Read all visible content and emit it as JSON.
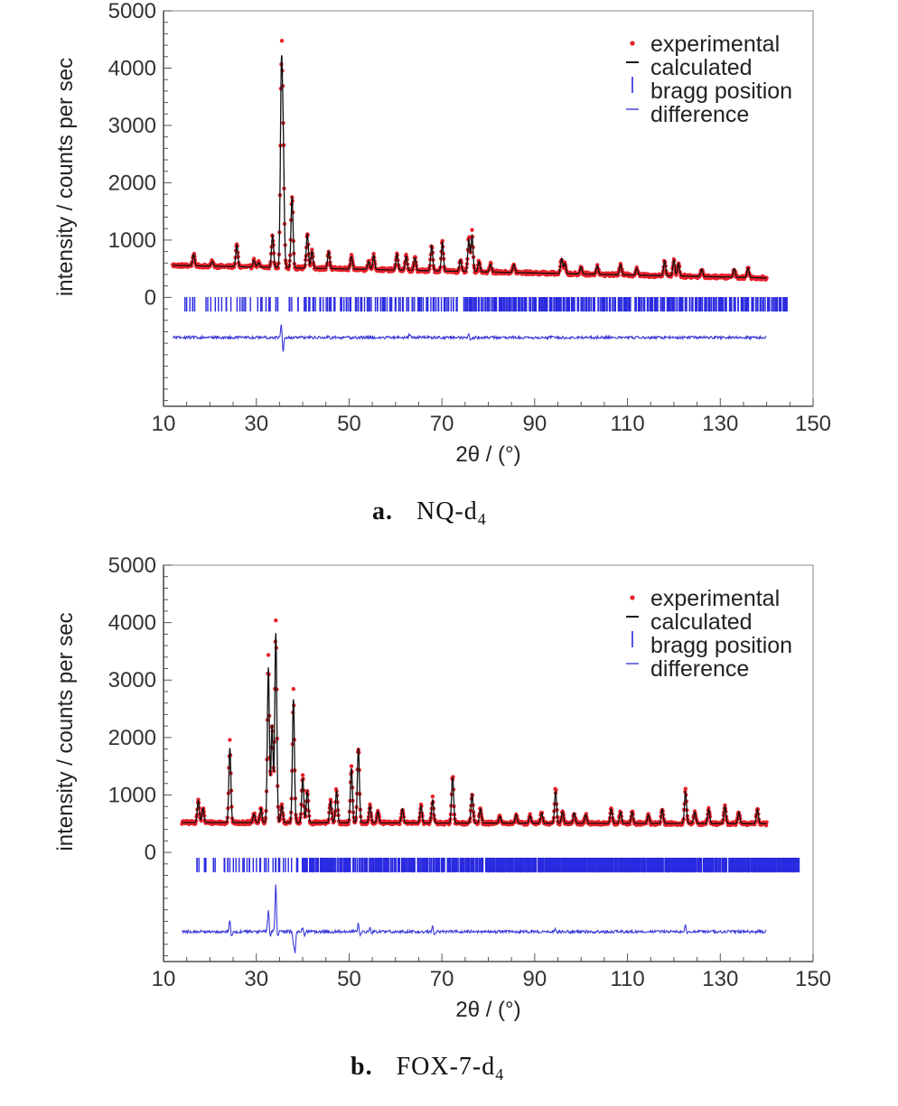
{
  "chart_data": [
    {
      "id": "a",
      "type": "line",
      "caption_letter": "a.",
      "caption_name": "NQ-d",
      "caption_sub": "4",
      "xlabel": "2θ / (°)",
      "ylabel": "intensity / counts per sec",
      "xlim": [
        10,
        150
      ],
      "ylim": [
        -1900,
        5000
      ],
      "x_ticks": [
        10,
        30,
        50,
        70,
        90,
        110,
        130,
        150
      ],
      "y_ticks": [
        0,
        1000,
        2000,
        3000,
        4000,
        5000
      ],
      "grid": false,
      "legend_position": "top-right",
      "legend": [
        "experimental",
        "calculated",
        "bragg position",
        "difference"
      ],
      "colors": {
        "experimental": "#e8202a",
        "calculated": "#111111",
        "bragg": "#2a2ae0",
        "difference": "#3a3ad8"
      },
      "x_range": [
        12,
        140
      ],
      "background": {
        "start": 560,
        "end": 340
      },
      "peaks": [
        [
          16.5,
          200
        ],
        [
          20.5,
          80
        ],
        [
          25.8,
          380
        ],
        [
          29.5,
          120
        ],
        [
          30.5,
          80
        ],
        [
          33.5,
          560
        ],
        [
          35.4,
          3250
        ],
        [
          35.8,
          1900
        ],
        [
          37.7,
          1250
        ],
        [
          41.0,
          600
        ],
        [
          42.0,
          300
        ],
        [
          45.6,
          300
        ],
        [
          50.5,
          220
        ],
        [
          54.2,
          140
        ],
        [
          55.3,
          250
        ],
        [
          60.3,
          280
        ],
        [
          62.3,
          250
        ],
        [
          64.2,
          220
        ],
        [
          67.8,
          440
        ],
        [
          70.1,
          500
        ],
        [
          74.0,
          200
        ],
        [
          75.8,
          560
        ],
        [
          76.5,
          620
        ],
        [
          78.0,
          180
        ],
        [
          80.5,
          140
        ],
        [
          85.5,
          140
        ],
        [
          95.8,
          260
        ],
        [
          96.5,
          180
        ],
        [
          100.0,
          120
        ],
        [
          103.5,
          150
        ],
        [
          108.5,
          180
        ],
        [
          112.0,
          120
        ],
        [
          118.0,
          260
        ],
        [
          120.0,
          280
        ],
        [
          121.0,
          220
        ],
        [
          126.0,
          130
        ],
        [
          133.0,
          150
        ],
        [
          136.0,
          170
        ]
      ],
      "bragg_y": -120,
      "bragg_sets": [
        [
          14,
          40,
          2.2,
          3
        ],
        [
          40,
          75,
          1.1,
          3
        ],
        [
          75,
          100,
          0.6,
          3
        ],
        [
          100,
          145,
          0.7,
          3
        ]
      ],
      "difference_offset": -700,
      "difference_features": [
        [
          35.4,
          260,
          -280
        ],
        [
          45.6,
          40,
          -30
        ],
        [
          63.0,
          60,
          0
        ],
        [
          75.8,
          60,
          -40
        ]
      ]
    },
    {
      "id": "b",
      "type": "line",
      "caption_letter": "b.",
      "caption_name": "FOX-7-d",
      "caption_sub": "4",
      "xlabel": "2θ / (°)",
      "ylabel": "intensity / counts per sec",
      "xlim": [
        10,
        150
      ],
      "ylim": [
        -1900,
        5000
      ],
      "x_ticks": [
        10,
        30,
        50,
        70,
        90,
        110,
        130,
        150
      ],
      "y_ticks": [
        0,
        1000,
        2000,
        3000,
        4000,
        5000
      ],
      "grid": false,
      "legend_position": "top-right",
      "legend": [
        "experimental",
        "calculated",
        "bragg position",
        "difference"
      ],
      "colors": {
        "experimental": "#e8202a",
        "calculated": "#111111",
        "bragg": "#2a2ae0",
        "difference": "#3a3ad8"
      },
      "x_range": [
        14,
        140
      ],
      "background": {
        "start": 520,
        "end": 500
      },
      "peaks": [
        [
          17.5,
          380
        ],
        [
          18.5,
          250
        ],
        [
          24.3,
          1300
        ],
        [
          29.5,
          150
        ],
        [
          31.0,
          250
        ],
        [
          32.6,
          2700
        ],
        [
          33.4,
          1700
        ],
        [
          34.2,
          3300
        ],
        [
          35.5,
          300
        ],
        [
          38.0,
          2150
        ],
        [
          40.0,
          780
        ],
        [
          41.0,
          550
        ],
        [
          46.0,
          380
        ],
        [
          47.3,
          550
        ],
        [
          50.5,
          950
        ],
        [
          52.0,
          1300
        ],
        [
          54.5,
          300
        ],
        [
          56.2,
          200
        ],
        [
          61.5,
          250
        ],
        [
          65.5,
          300
        ],
        [
          68.0,
          400
        ],
        [
          72.3,
          800
        ],
        [
          76.5,
          500
        ],
        [
          78.3,
          250
        ],
        [
          82.5,
          120
        ],
        [
          86.0,
          150
        ],
        [
          89.0,
          130
        ],
        [
          91.5,
          180
        ],
        [
          94.5,
          550
        ],
        [
          96.0,
          200
        ],
        [
          98.5,
          180
        ],
        [
          101.0,
          150
        ],
        [
          106.5,
          250
        ],
        [
          108.5,
          200
        ],
        [
          111.0,
          200
        ],
        [
          114.5,
          150
        ],
        [
          117.5,
          250
        ],
        [
          122.5,
          550
        ],
        [
          124.5,
          200
        ],
        [
          127.5,
          250
        ],
        [
          131.0,
          300
        ],
        [
          134.0,
          200
        ],
        [
          138.0,
          250
        ]
      ],
      "bragg_y": -220,
      "bragg_sets": [
        [
          17,
          40,
          1.6,
          3
        ],
        [
          40,
          80,
          0.7,
          5
        ],
        [
          80,
          147,
          0.55,
          7
        ]
      ],
      "difference_offset": -1380,
      "difference_features": [
        [
          24.3,
          200,
          -100
        ],
        [
          32.6,
          400,
          -80
        ],
        [
          34.2,
          870,
          -120
        ],
        [
          38.0,
          -200,
          -350
        ],
        [
          40.0,
          80,
          -80
        ],
        [
          52.0,
          160,
          -60
        ],
        [
          54.5,
          80,
          -40
        ],
        [
          68.0,
          100,
          -50
        ],
        [
          94.5,
          60,
          -40
        ],
        [
          122.5,
          120,
          -60
        ]
      ]
    }
  ]
}
